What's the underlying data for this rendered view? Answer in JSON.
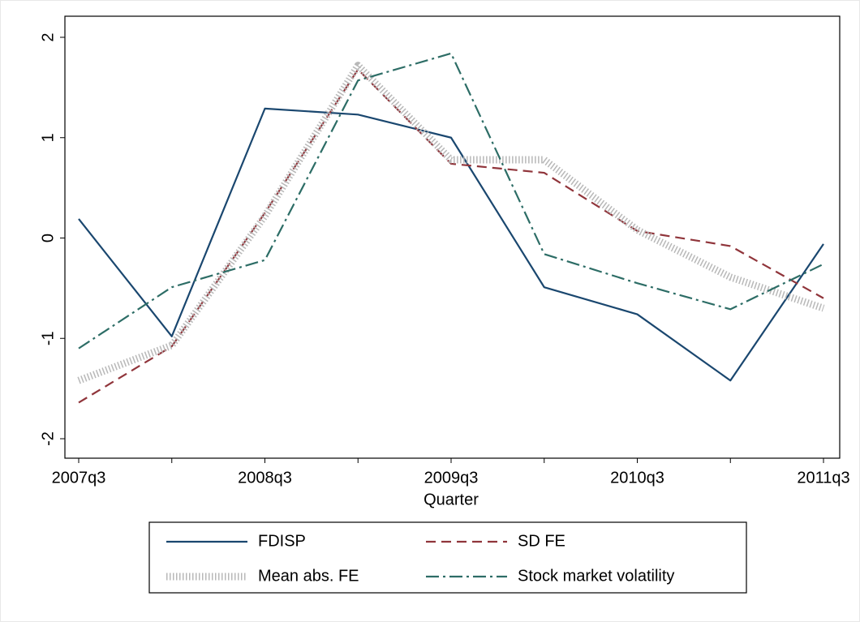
{
  "chart_data": {
    "type": "line",
    "x_label": "Quarter",
    "categories": [
      "2007q3",
      null,
      "2008q3",
      null,
      "2009q3",
      null,
      "2010q3",
      null,
      "2011q3"
    ],
    "series": [
      {
        "name": "FDISP",
        "color": "#1a476f",
        "line_style": "solid",
        "values": [
          0.19,
          -0.98,
          1.29,
          1.23,
          1.0,
          -0.49,
          -0.76,
          -1.42,
          -0.06
        ]
      },
      {
        "name": "SD FE",
        "color": "#90353b",
        "line_style": "dash",
        "values": [
          -1.64,
          -1.08,
          0.25,
          1.68,
          0.74,
          0.65,
          0.07,
          -0.08,
          -0.6
        ]
      },
      {
        "name": "Mean abs. FE",
        "color": "#b8b8b8",
        "line_style": "hatch",
        "values": [
          -1.42,
          -1.07,
          0.22,
          1.72,
          0.78,
          0.78,
          0.08,
          -0.39,
          -0.7
        ]
      },
      {
        "name": "Stock market volatility",
        "color": "#2d6d66",
        "line_style": "dashdot",
        "values": [
          -1.1,
          -0.49,
          -0.22,
          1.57,
          1.84,
          -0.16,
          -0.45,
          -0.71,
          -0.26
        ]
      }
    ],
    "ylim": [
      -2,
      2
    ],
    "yticks": [
      -2,
      -1,
      0,
      1,
      2
    ],
    "legend": "bottom"
  }
}
